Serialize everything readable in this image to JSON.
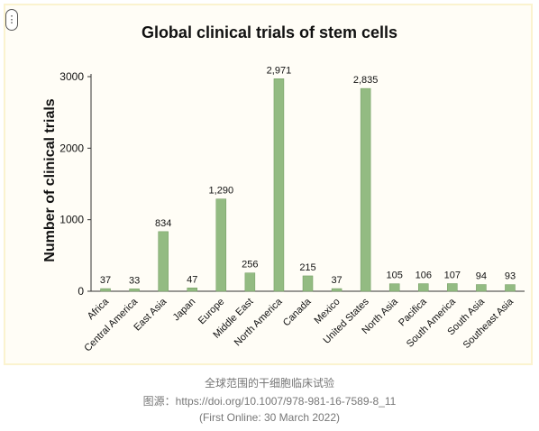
{
  "menu": {
    "icon": "more-vertical-icon",
    "glyph": "⋮"
  },
  "chart_data": {
    "type": "bar",
    "title": "Global clinical trials of stem cells",
    "xlabel": "",
    "ylabel": "Number of clinical trials",
    "categories": [
      "Africa",
      "Central America",
      "East Asia",
      "Japan",
      "Europe",
      "Middle East",
      "North America",
      "Canada",
      "Mexico",
      "United States",
      "North Asia",
      "Pacifica",
      "South America",
      "South Asia",
      "Southeast Asia"
    ],
    "values": [
      37,
      33,
      834,
      47,
      1290,
      256,
      2971,
      215,
      37,
      2835,
      105,
      106,
      107,
      94,
      93
    ],
    "value_labels": [
      "37",
      "33",
      "834",
      "47",
      "1,290",
      "256",
      "2,971",
      "215",
      "37",
      "2,835",
      "105",
      "106",
      "107",
      "94",
      "93"
    ],
    "yticks": [
      0,
      1000,
      2000,
      3000
    ],
    "ylim": [
      0,
      3000
    ],
    "grid": false,
    "bar_color": "#93bb82"
  },
  "caption": {
    "line1": "全球范围的干细胞临床试验",
    "line2": "图源：https://doi.org/10.1007/978-981-16-7589-8_11",
    "line3": "(First Online: 30 March 2022)"
  }
}
